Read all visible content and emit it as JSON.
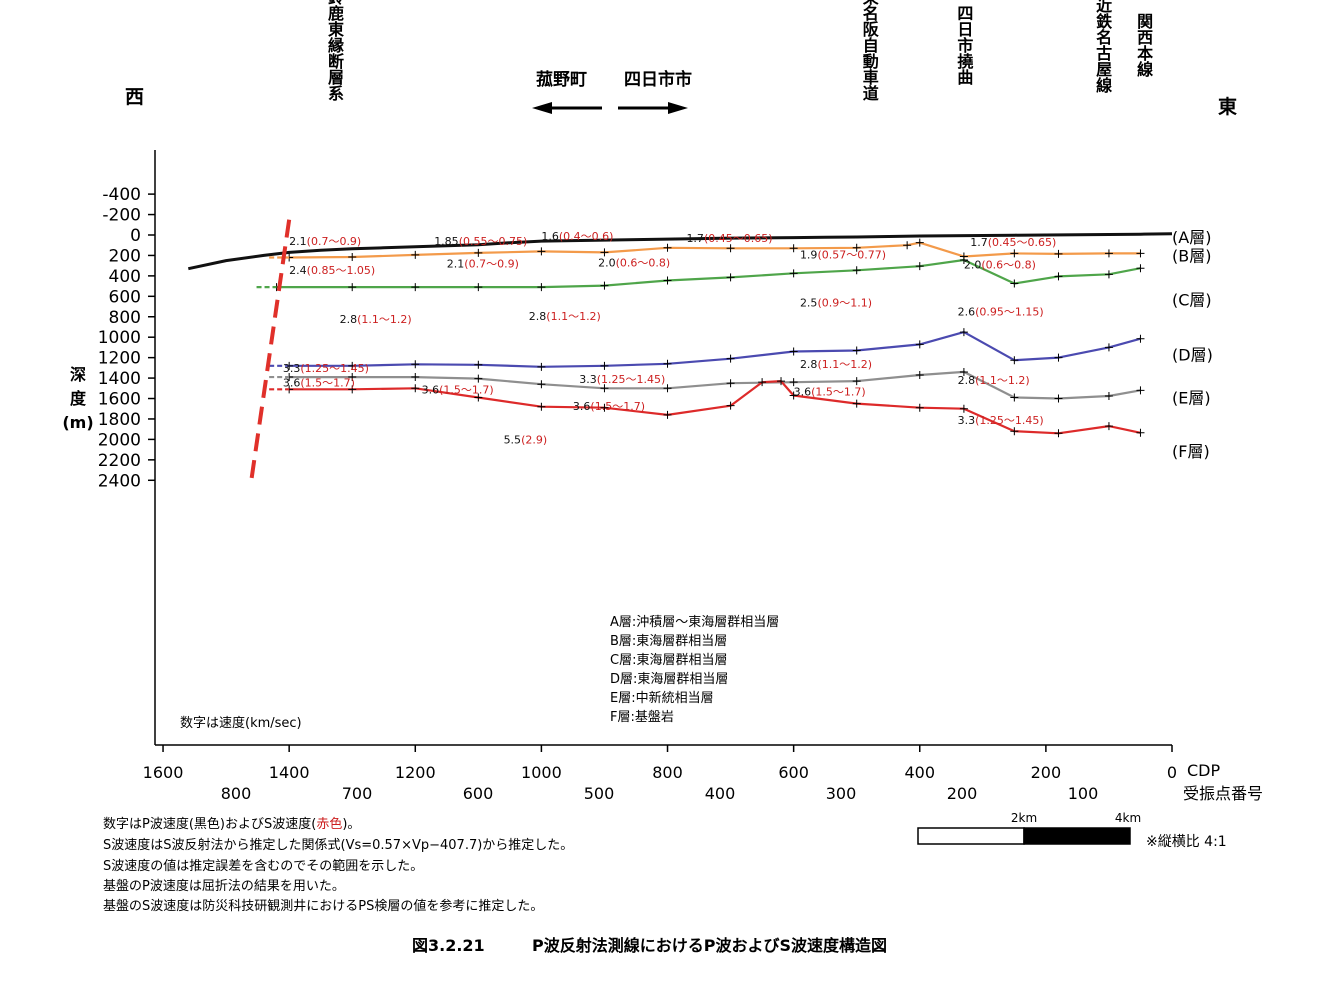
{
  "chart_data": {
    "type": "line",
    "y_axis": {
      "label_lines": [
        "深",
        "度",
        "(m)"
      ],
      "ticks": [
        "-400",
        "-200",
        "0",
        "200",
        "400",
        "600",
        "800",
        "1000",
        "1200",
        "1400",
        "1600",
        "1800",
        "2000",
        "2200",
        "2400"
      ],
      "range": [
        -400,
        2500
      ],
      "inverted": true
    },
    "x_axis": {
      "cdp_label": "CDP",
      "station_label": "受振点番号",
      "cdp_ticks": [
        "1600",
        "1400",
        "1200",
        "1000",
        "800",
        "600",
        "400",
        "200",
        "0"
      ],
      "station_ticks": [
        "800",
        "700",
        "600",
        "500",
        "400",
        "300",
        "200",
        "100"
      ]
    },
    "directions": {
      "west": "西",
      "east": "東"
    },
    "features": [
      {
        "name": "鈴鹿東縁断層系",
        "cdp": 1420
      },
      {
        "name": "東名阪自動車道",
        "cdp": 480
      },
      {
        "name": "四日市撓曲",
        "cdp": 330
      },
      {
        "name": "近鉄名古屋線",
        "cdp": 110
      },
      {
        "name": "関西本線",
        "cdp": 45
      }
    ],
    "towns": {
      "left": "菰野町",
      "right": "四日市市"
    },
    "series": [
      {
        "color": "#111111",
        "x": [
          1560,
          1500,
          1440,
          1400,
          1350,
          1300,
          1250,
          1200,
          1150,
          1100,
          1050,
          1000,
          950,
          900,
          850,
          800,
          750,
          700,
          650,
          600,
          550,
          500,
          450,
          400,
          350,
          300,
          250,
          200,
          150,
          100,
          50,
          0
        ],
        "y": [
          330,
          250,
          200,
          170,
          150,
          135,
          125,
          115,
          105,
          95,
          75,
          60,
          55,
          50,
          45,
          40,
          35,
          30,
          28,
          25,
          22,
          20,
          15,
          10,
          8,
          5,
          2,
          0,
          -3,
          -5,
          -8,
          -12
        ]
      },
      {
        "color": "#f39a4a",
        "x": [
          1400,
          1300,
          1200,
          1100,
          1000,
          900,
          800,
          700,
          600,
          500,
          420,
          400,
          330,
          250,
          180,
          100,
          50
        ],
        "y": [
          220,
          215,
          195,
          175,
          160,
          170,
          125,
          130,
          130,
          125,
          100,
          75,
          210,
          180,
          185,
          180,
          180
        ]
      },
      {
        "color": "#4fa54a",
        "x": [
          1420,
          1300,
          1200,
          1100,
          1000,
          900,
          800,
          700,
          600,
          500,
          400,
          330,
          250,
          180,
          100,
          50
        ],
        "y": [
          510,
          510,
          510,
          510,
          510,
          495,
          445,
          415,
          375,
          345,
          305,
          245,
          475,
          405,
          385,
          325
        ]
      },
      {
        "color": "#4b4ab0",
        "x": [
          1400,
          1300,
          1200,
          1100,
          1000,
          900,
          800,
          700,
          600,
          500,
          400,
          330,
          250,
          180,
          100,
          50
        ],
        "y": [
          1280,
          1280,
          1265,
          1270,
          1290,
          1280,
          1260,
          1210,
          1140,
          1130,
          1070,
          950,
          1225,
          1200,
          1100,
          1015
        ]
      },
      {
        "color": "#8f8f8f",
        "x": [
          1400,
          1300,
          1200,
          1100,
          1000,
          900,
          800,
          700,
          600,
          500,
          400,
          330,
          250,
          180,
          100,
          50
        ],
        "y": [
          1390,
          1390,
          1390,
          1405,
          1460,
          1500,
          1500,
          1450,
          1440,
          1430,
          1370,
          1340,
          1590,
          1600,
          1575,
          1520
        ]
      },
      {
        "color": "#dd2a2a",
        "x": [
          1400,
          1300,
          1200,
          1100,
          1000,
          900,
          800,
          700,
          650,
          620,
          600,
          500,
          400,
          330,
          250,
          180,
          100,
          50
        ],
        "y": [
          1510,
          1510,
          1500,
          1590,
          1680,
          1690,
          1760,
          1670,
          1440,
          1430,
          1570,
          1650,
          1690,
          1700,
          1920,
          1940,
          1870,
          1935
        ]
      }
    ],
    "fault_trace": {
      "color": "#e0302a",
      "x": [
        1400,
        1460
      ],
      "y": [
        -150,
        2400
      ]
    },
    "velocity_labels": [
      {
        "p": "2.1",
        "s": "(0.7～0.9)",
        "cdp": 1400,
        "depth": 100
      },
      {
        "p": "1.85",
        "s": "(0.55～0.75)",
        "cdp": 1170,
        "depth": 100
      },
      {
        "p": "1.6",
        "s": "(0.4～0.6)",
        "cdp": 1000,
        "depth": 50
      },
      {
        "p": "1.7",
        "s": "(0.45～0.65)",
        "cdp": 770,
        "depth": 70
      },
      {
        "p": "1.7",
        "s": "(0.45～0.65)",
        "cdp": 320,
        "depth": 110
      },
      {
        "p": "2.1",
        "s": "(0.7～0.9)",
        "cdp": 1150,
        "depth": 320
      },
      {
        "p": "2.0",
        "s": "(0.6～0.8)",
        "cdp": 910,
        "depth": 310
      },
      {
        "p": "1.9",
        "s": "(0.57～0.77)",
        "cdp": 590,
        "depth": 230
      },
      {
        "p": "2.4",
        "s": "(0.85～1.05)",
        "cdp": 1400,
        "depth": 380
      },
      {
        "p": "2.0",
        "s": "(0.6～0.8)",
        "cdp": 330,
        "depth": 330
      },
      {
        "p": "2.5",
        "s": "(0.9～1.1)",
        "cdp": 590,
        "depth": 700
      },
      {
        "p": "2.8",
        "s": "(1.1～1.2)",
        "cdp": 1320,
        "depth": 860
      },
      {
        "p": "2.8",
        "s": "(1.1～1.2)",
        "cdp": 1020,
        "depth": 830
      },
      {
        "p": "2.6",
        "s": "(0.95～1.15)",
        "cdp": 340,
        "depth": 790
      },
      {
        "p": "2.8",
        "s": "(1.1～1.2)",
        "cdp": 590,
        "depth": 1300
      },
      {
        "p": "3.3",
        "s": "(1.25～1.45)",
        "cdp": 1410,
        "depth": 1340
      },
      {
        "p": "3.3",
        "s": "(1.25～1.45)",
        "cdp": 940,
        "depth": 1450
      },
      {
        "p": "2.8",
        "s": "(1.1～1.2)",
        "cdp": 340,
        "depth": 1460
      },
      {
        "p": "3.6",
        "s": "(1.5～1.7)",
        "cdp": 1410,
        "depth": 1480
      },
      {
        "p": "3.6",
        "s": "(1.5～1.7)",
        "cdp": 1190,
        "depth": 1550
      },
      {
        "p": "3.6",
        "s": "(1.5～1.7)",
        "cdp": 600,
        "depth": 1570
      },
      {
        "p": "3.6",
        "s": "(1.5～1.7)",
        "cdp": 950,
        "depth": 1710
      },
      {
        "p": "3.3",
        "s": "(1.25～1.45)",
        "cdp": 340,
        "depth": 1850
      },
      {
        "p": "5.5",
        "s": "(2.9)",
        "cdp": 1060,
        "depth": 2040
      }
    ],
    "layer_labels": [
      {
        "text": "(A層)",
        "depth": 80
      },
      {
        "text": "(B層)",
        "depth": 260
      },
      {
        "text": "(C層)",
        "depth": 690
      },
      {
        "text": "(D層)",
        "depth": 1230
      },
      {
        "text": "(E層)",
        "depth": 1650
      },
      {
        "text": "(F層)",
        "depth": 2170
      }
    ]
  },
  "legend_lines": [
    "A層:沖積層～東海層群相当層",
    "B層:東海層群相当層",
    "C層:東海層群相当層",
    "D層:東海層群相当層",
    "E層:中新統相当層",
    "F層:基盤岩"
  ],
  "velocity_note": "数字は速度(km/sec)",
  "scale": {
    "mark_2km": "2km",
    "mark_4km": "4km",
    "ratio": "※縦横比 4:1"
  },
  "notes": {
    "line1_pre": "数字はP波速度(黒色)およびS波速度(",
    "line1_red": "赤色",
    "line1_post": ")。",
    "line2": "S波速度はS波反射法から推定した関係式(Vs=0.57×Vp−407.7)から推定した。",
    "line3": "S波速度の値は推定誤差を含むのでその範囲を示した。",
    "line4": "基盤のP波速度は屈折法の結果を用いた。",
    "line5": "基盤のS波速度は防災科技研観測井におけるPS検層の値を参考に推定した。"
  },
  "caption": {
    "number": "図3.2.21",
    "title": "P波反射法測線におけるP波およびS波速度構造図"
  }
}
